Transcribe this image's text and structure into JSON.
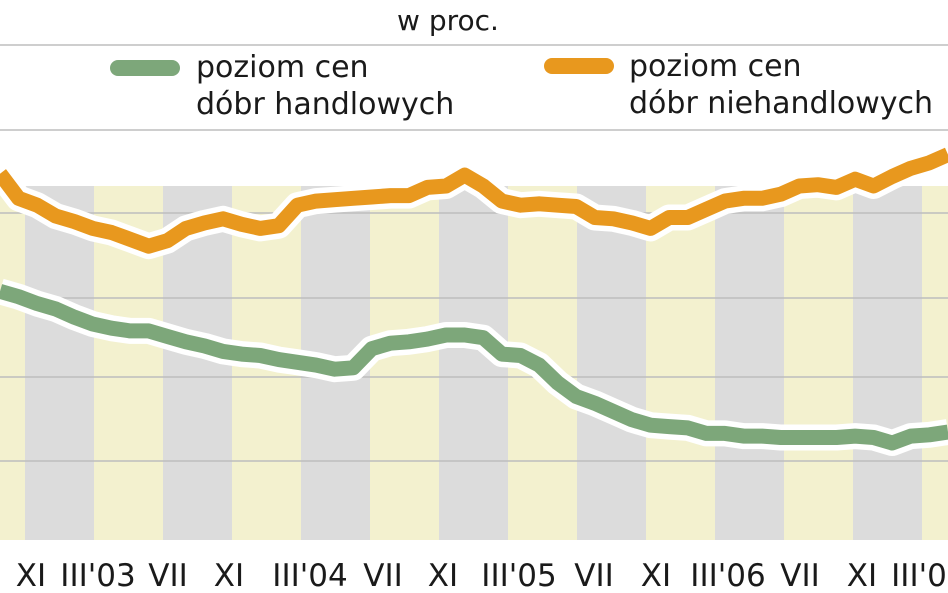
{
  "chart_data": {
    "type": "line",
    "unit_label": "w proc.",
    "x_tick_labels": [
      "XI",
      "III'03",
      "VII",
      "XI",
      "III'04",
      "VII",
      "XI",
      "III'05",
      "VII",
      "XI",
      "III'06",
      "VII",
      "XI",
      "III'0"
    ],
    "grid": true,
    "legend_position": "top",
    "series": [
      {
        "name_line1": "poziom cen",
        "name_line2": "dóbr handlowych",
        "color": "#7da77a",
        "values": [
          68.2,
          67.8,
          67.3,
          66.9,
          66.3,
          65.8,
          65.5,
          65.3,
          65.3,
          64.9,
          64.5,
          64.2,
          63.8,
          63.6,
          63.5,
          63.2,
          63.0,
          62.8,
          62.5,
          62.6,
          64.0,
          64.4,
          64.5,
          64.7,
          65.0,
          65.0,
          64.8,
          63.6,
          63.5,
          62.8,
          61.5,
          60.5,
          60.0,
          59.4,
          58.8,
          58.4,
          58.3,
          58.2,
          57.8,
          57.8,
          57.6,
          57.6,
          57.5,
          57.5,
          57.5,
          57.5,
          57.6,
          57.5,
          57.1,
          57.6,
          57.7,
          57.9
        ]
      },
      {
        "name_line1": "poziom cen",
        "name_line2": "dóbr niehandlowych",
        "color": "#e8981e",
        "values": [
          76.8,
          75.0,
          74.5,
          73.7,
          73.3,
          72.8,
          72.5,
          72.0,
          71.5,
          71.9,
          72.8,
          73.2,
          73.5,
          73.1,
          72.8,
          73.0,
          74.5,
          74.8,
          74.9,
          75.0,
          75.1,
          75.2,
          75.2,
          75.8,
          75.9,
          76.7,
          75.9,
          74.8,
          74.5,
          74.6,
          74.5,
          74.4,
          73.6,
          73.5,
          73.2,
          72.8,
          73.6,
          73.6,
          74.2,
          74.8,
          75.0,
          75.0,
          75.3,
          75.9,
          76.0,
          75.8,
          76.4,
          75.9,
          76.6,
          77.2,
          77.6,
          78.2
        ]
      }
    ],
    "colors": {
      "band_a": "#f3f1cf",
      "band_b": "#dcdcdc",
      "grid": "#bdbdbd",
      "halo": "#ffffff"
    }
  }
}
